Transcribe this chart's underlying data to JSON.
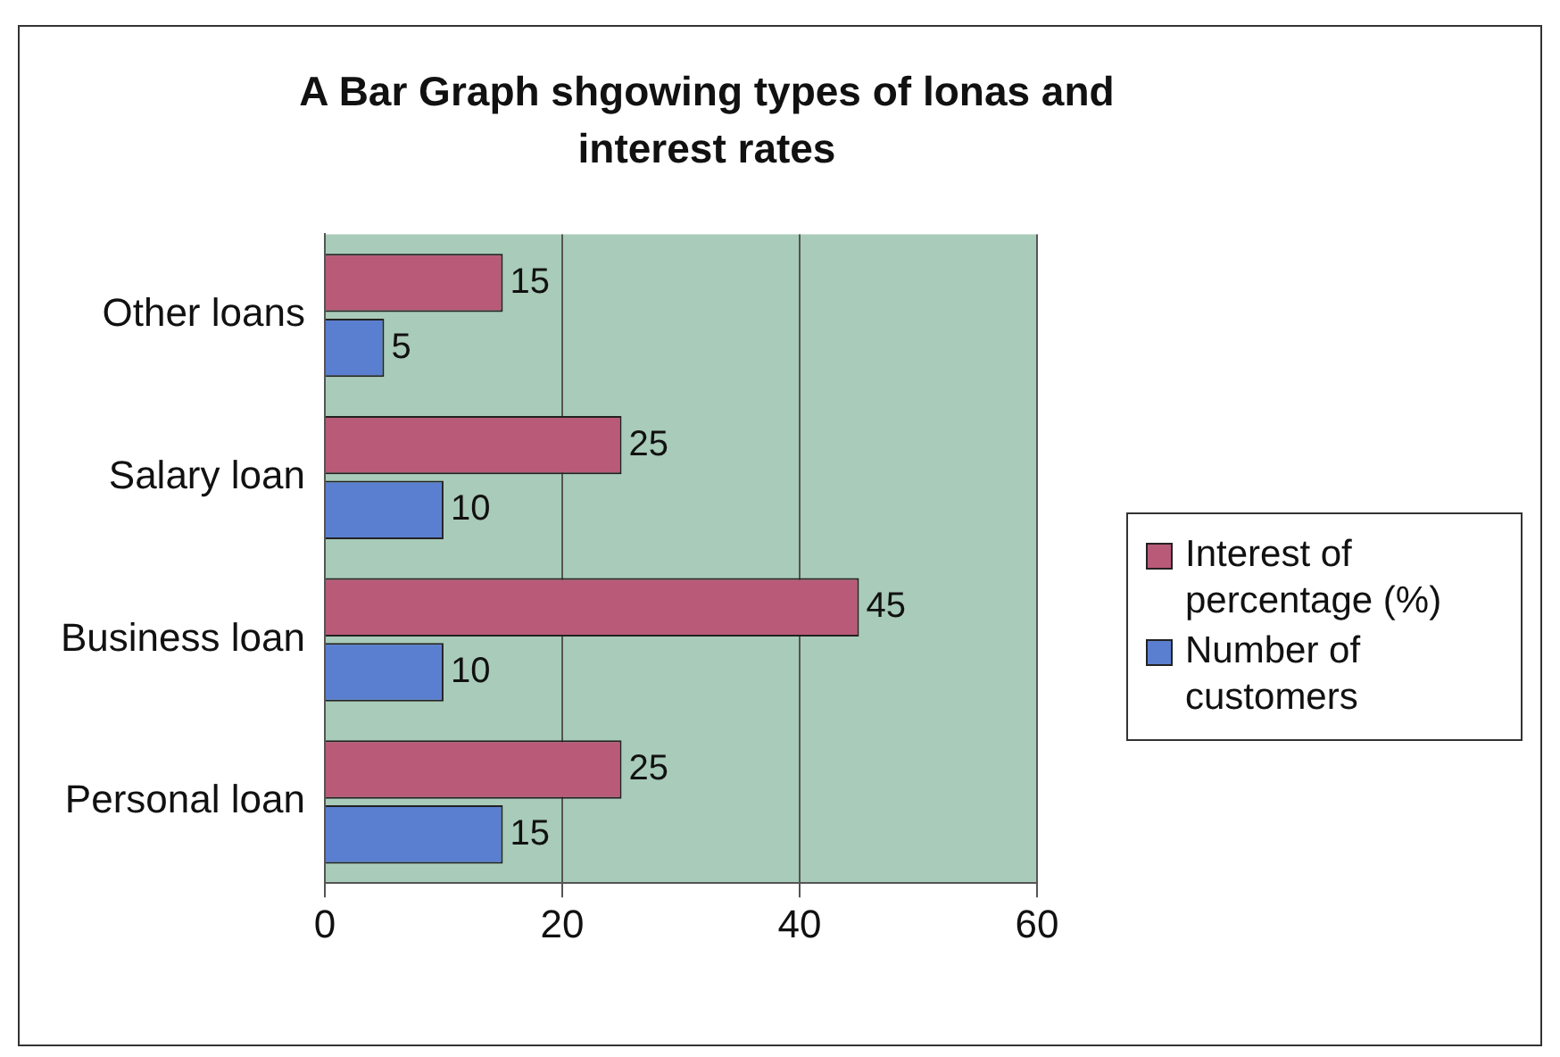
{
  "chart_data": {
    "type": "bar",
    "orientation": "horizontal",
    "title": "A Bar Graph shgowing types of lonas and interest rates",
    "categories": [
      "Other loans",
      "Salary loan",
      "Business loan",
      "Personal loan"
    ],
    "series": [
      {
        "name": "Interest of percentage (%)",
        "color": "#b85a78",
        "values": [
          15,
          25,
          45,
          25
        ]
      },
      {
        "name": "Number of customers",
        "color": "#5a7fd0",
        "values": [
          5,
          10,
          10,
          15
        ]
      }
    ],
    "xlim": [
      0,
      60
    ],
    "xticks": [
      0,
      20,
      40,
      60
    ],
    "grid": "x",
    "legend": "right",
    "data_labels": true
  }
}
